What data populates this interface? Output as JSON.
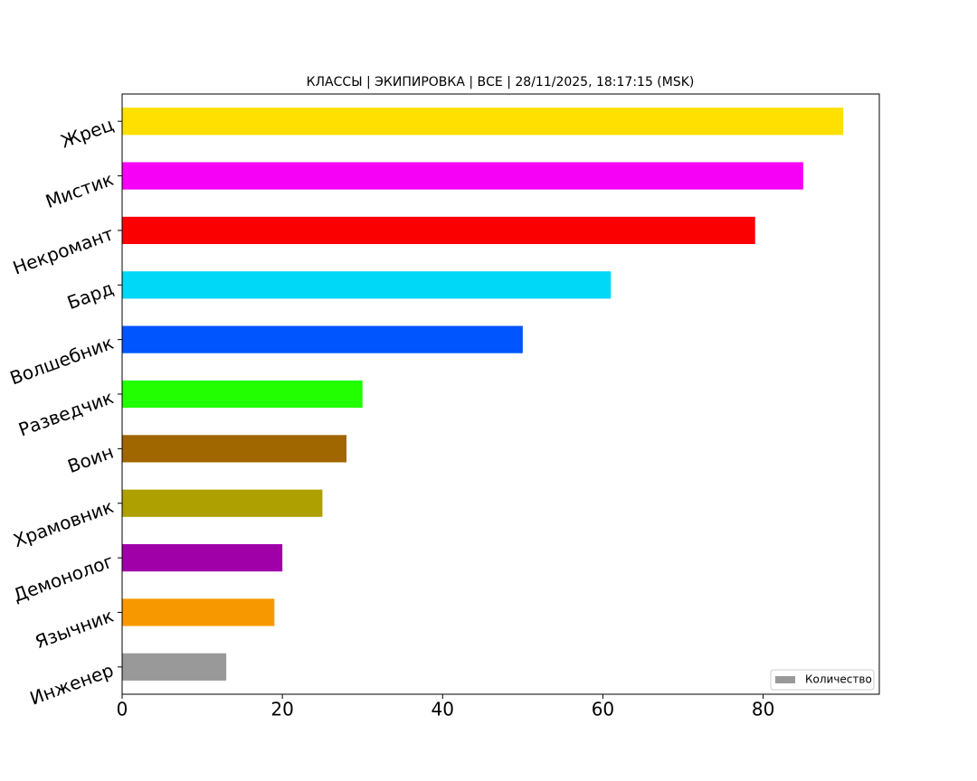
{
  "chart_data": {
    "type": "barh",
    "title": "КЛАССЫ | ЭКИПИРОВКА | ВСЕ | 28/11/2025, 18:17:15 (MSK)",
    "categories": [
      "Инженер",
      "Язычник",
      "Демонолог",
      "Храмовник",
      "Воин",
      "Разведчик",
      "Волшебник",
      "Бард",
      "Некромант",
      "Мистик",
      "Жрец"
    ],
    "series": [
      {
        "name": "Количество",
        "color": "#999999",
        "values": [
          13,
          19,
          20,
          25,
          28,
          30,
          50,
          61,
          79,
          85,
          90
        ],
        "colors": [
          "#999999",
          "#f89800",
          "#a000a8",
          "#aea000",
          "#a06600",
          "#22ff00",
          "#0055ff",
          "#00d8f8",
          "#fa0000",
          "#f600f6",
          "#ffe000"
        ]
      }
    ],
    "xlim": [
      0,
      94.5
    ],
    "xticks": [
      0,
      20,
      40,
      60,
      80
    ],
    "legend": "lower right"
  }
}
